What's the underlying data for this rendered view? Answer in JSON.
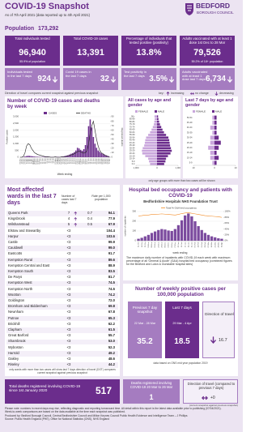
{
  "header": {
    "title": "COVID-19 Snapshot",
    "subtitle": "As of 7th April 2021 (data reported up to 4th April 2021)",
    "logo": [
      "BEDFORD",
      "BOROUGH COUNCIL"
    ]
  },
  "population": {
    "label": "Population",
    "value": "173,292"
  },
  "tiles": [
    {
      "label": "Total individuals tested",
      "value": "96,940",
      "note": "55.9% of population"
    },
    {
      "label": "Total COVID-19 cases",
      "value": "13,391"
    },
    {
      "label": "Percentage of individuals that tested positive (positivity)",
      "value": "13.8%"
    },
    {
      "label": "Adults vaccinated with at least 1 dose 1st Dec to 28 Mar",
      "value": "79,526",
      "note": "59.2% of 18+ population"
    }
  ],
  "tiles_7day": [
    {
      "label": "Individuals tested in the last 7 days",
      "value": "924",
      "dot": "down"
    },
    {
      "label": "Covid 19 cases in the last 7 days",
      "value": "32",
      "dot": "down"
    },
    {
      "label": "Test positivity in the last 7 days",
      "value": "3.5%",
      "dot": "down"
    },
    {
      "label": "Adults vaccinated with at least 1 dose last 7 days",
      "value": "6,734",
      "dot": "down"
    }
  ],
  "dot_note": "Direction of travel compares current snapshot against previous snapshot",
  "key": {
    "label": "key:",
    "items": [
      {
        "text": "increasing",
        "dot": "up"
      },
      {
        "text": "no change",
        "dot": "flat"
      },
      {
        "text": "decreasing",
        "dot": "down"
      }
    ]
  },
  "cases_deaths": {
    "title": "Number of COVID-19 cases and deaths by week",
    "type": "bar",
    "categories": [
      "06-Mar",
      "13-Mar",
      "20-Mar",
      "27-Mar",
      "03-Apr",
      "10-Apr",
      "17-Apr",
      "24-Apr",
      "01-May",
      "08-May",
      "15-May",
      "22-May",
      "29-May",
      "05-Jun",
      "12-Jun",
      "19-Jun",
      "26-Jun",
      "03-Jul",
      "10-Jul",
      "17-Jul",
      "24-Jul",
      "31-Jul",
      "07-Aug",
      "14-Aug",
      "21-Aug",
      "28-Aug",
      "04-Sep",
      "11-Sep",
      "18-Sep",
      "25-Sep",
      "02-Oct",
      "09-Oct",
      "16-Oct",
      "23-Oct",
      "30-Oct",
      "06-Nov",
      "13-Nov",
      "20-Nov",
      "27-Nov",
      "04-Dec",
      "11-Dec",
      "18-Dec",
      "25-Dec",
      "01-Jan",
      "08-Jan",
      "15-Jan",
      "22-Jan",
      "29-Jan",
      "05-Feb",
      "12-Feb",
      "19-Feb",
      "26-Feb",
      "05-Mar",
      "12-Mar",
      "19-Mar",
      "26-Mar",
      "02-Apr"
    ],
    "series": [
      {
        "name": "CASES",
        "color": "#6b2d8c",
        "values": [
          1,
          5,
          20,
          60,
          90,
          110,
          100,
          80,
          70,
          50,
          40,
          35,
          30,
          25,
          20,
          40,
          60,
          50,
          30,
          25,
          20,
          25,
          30,
          35,
          30,
          25,
          40,
          60,
          90,
          120,
          150,
          200,
          260,
          300,
          380,
          500,
          700,
          650,
          550,
          480,
          600,
          900,
          1500,
          2300,
          2800,
          2200,
          1500,
          1000,
          700,
          500,
          400,
          300,
          250,
          200,
          150,
          100,
          32
        ]
      },
      {
        "name": "DEATHS",
        "color": "#222222",
        "axis": "y2",
        "values": [
          0,
          0,
          2,
          10,
          25,
          30,
          28,
          20,
          15,
          10,
          8,
          6,
          5,
          4,
          3,
          2,
          1,
          1,
          1,
          0,
          0,
          0,
          1,
          0,
          0,
          0,
          1,
          1,
          1,
          2,
          3,
          4,
          5,
          6,
          8,
          10,
          12,
          14,
          12,
          10,
          9,
          10,
          15,
          30,
          55,
          70,
          80,
          60,
          40,
          25,
          15,
          10,
          8,
          5,
          3,
          2,
          1
        ]
      }
    ],
    "ylim": [
      0,
      3000
    ],
    "yticks": [
      0,
      500,
      {
        "value": 1000,
        "label": "1,000"
      },
      {
        "value": 1500,
        "label": "1,500"
      },
      {
        "value": 2000,
        "label": "2,000"
      },
      {
        "value": 2500,
        "label": "2,500"
      },
      {
        "value": 3000,
        "label": "3,000"
      }
    ],
    "y2lim": [
      0,
      90
    ],
    "y2ticks": [
      0,
      10,
      20,
      30,
      40,
      50,
      60,
      70,
      80,
      90
    ],
    "xlabel": "Week ending",
    "ylabel": "Positive cases",
    "y2label": "Registered deaths"
  },
  "age": {
    "panels": [
      {
        "title": "All cases by age and gender",
        "categories": [
          "0-4",
          "5-9",
          "10-14",
          "15-19",
          "20-24",
          "25-29",
          "30-34",
          "35-39",
          "40-44",
          "45-49",
          "50-54",
          "55-59",
          "60-64",
          "65-69",
          "70-74",
          "75-79",
          "80-84",
          "85-89",
          "90+"
        ],
        "series": [
          {
            "name": "FEMALE",
            "color": "#c9a6dc",
            "values": [
              330,
              380,
              420,
              560,
              700,
              720,
              680,
              610,
              580,
              560,
              520,
              420,
              330,
              260,
              200,
              150,
              130,
              110,
              120
            ]
          },
          {
            "name": "MALE",
            "color": "#6b2d8c",
            "values": [
              340,
              400,
              430,
              520,
              640,
              700,
              660,
              620,
              600,
              580,
              540,
              430,
              330,
              260,
              200,
              140,
              100,
              70,
              50
            ]
          }
        ],
        "xlim": [
          0,
          1000
        ],
        "xticks": [
          0,
          {
            "value": 1000,
            "label": "1,000"
          }
        ]
      },
      {
        "title": "Last 7 days by age and gender",
        "categories": [
          "5-9",
          "10-14",
          "15-19",
          "20-24",
          "25-29",
          "30-34",
          "35-39",
          "40-44",
          "45-49",
          "50-54"
        ],
        "series": [
          {
            "name": "FEMALE",
            "color": "#c9a6dc",
            "values": [
              1,
              2,
              2,
              3,
              2,
              2,
              1,
              2,
              1,
              1
            ]
          },
          {
            "name": "MALE",
            "color": "#6b2d8c",
            "values": [
              1,
              2,
              1,
              2,
              3,
              2,
              1,
              1,
              1,
              1
            ]
          }
        ],
        "xlim": [
          0,
          10
        ],
        "xticks": [
          0,
          10
        ]
      }
    ],
    "note": "only age groups with more than two cases will be shown"
  },
  "wards": {
    "title": "Most affected wards in the last 7 days",
    "headers": [
      "Number of cases last 7 days",
      "Rate per 1,000 population"
    ],
    "rows": [
      {
        "ward": "Queens Park",
        "cases": "7",
        "dot": "up",
        "rate_7day": "0.7",
        "rate_total": "94.1"
      },
      {
        "ward": "Kingsbrook",
        "cases": "4",
        "dot": "up",
        "rate_7day": "0.4",
        "rate_total": "77.9"
      },
      {
        "ward": "Wilshamstead",
        "cases": "5",
        "dot": "up",
        "rate_7day": "0.5",
        "rate_total": "67.9"
      },
      {
        "ward": "Elstow and Stewartby",
        "cases": "<3",
        "rate_total": "104.4"
      },
      {
        "ward": "Harpur",
        "cases": "<3",
        "rate_total": "103.6"
      },
      {
        "ward": "Castle",
        "cases": "<3",
        "rate_total": "99.9"
      },
      {
        "ward": "Cauldwell",
        "cases": "<3",
        "rate_total": "99.0"
      },
      {
        "ward": "Eastcotts",
        "cases": "<3",
        "rate_total": "91.7"
      },
      {
        "ward": "Kempston Rural",
        "cases": "<3",
        "rate_total": "89.6"
      },
      {
        "ward": "Kempston Central and East",
        "cases": "<3",
        "rate_total": "88.9"
      },
      {
        "ward": "Kempston South",
        "cases": "<3",
        "rate_total": "83.5"
      },
      {
        "ward": "De Parys",
        "cases": "<3",
        "rate_total": "81.7"
      },
      {
        "ward": "Kempston West",
        "cases": "<3",
        "rate_total": "74.5"
      },
      {
        "ward": "Kempston North",
        "cases": "<3",
        "rate_total": "74.5"
      },
      {
        "ward": "Wootton",
        "cases": "<3",
        "rate_total": "74.2"
      },
      {
        "ward": "Goldington",
        "cases": "<3",
        "rate_total": "72.0"
      },
      {
        "ward": "Bromham and Biddenham",
        "cases": "<3",
        "rate_total": "69.8"
      },
      {
        "ward": "Newnham",
        "cases": "<3",
        "rate_total": "67.8"
      },
      {
        "ward": "Putnoe",
        "cases": "<3",
        "rate_total": "65.3"
      },
      {
        "ward": "Brickhill",
        "cases": "<3",
        "rate_total": "62.2"
      },
      {
        "ward": "Clapham",
        "cases": "<3",
        "rate_total": "61.5"
      },
      {
        "ward": "Great Barford",
        "cases": "<3",
        "rate_total": "55.7"
      },
      {
        "ward": "Sharnbrook",
        "cases": "<3",
        "rate_total": "53.0"
      },
      {
        "ward": "Wyboston",
        "cases": "<3",
        "rate_total": "52.3"
      },
      {
        "ward": "Harrold",
        "cases": "<3",
        "rate_total": "49.2"
      },
      {
        "ward": "Oakley",
        "cases": "<3",
        "rate_total": "48.6"
      },
      {
        "ward": "Riseley",
        "cases": "<3",
        "rate_total": "44.2"
      }
    ],
    "note": "only wards with more than two cases will show last 7 days direction of travel (DOT) compares current snapshot against previous snapshot"
  },
  "hospital": {
    "title": "Hospital bed occupancy and patients with COVID-19",
    "subtitle": "Bedfordshire Hospitals NHS Foundation Trust",
    "type": "bar",
    "categories": [
      "11-Oct",
      "18-Oct",
      "25-Oct",
      "01-Nov",
      "08-Nov",
      "15-Nov",
      "22-Nov",
      "29-Nov",
      "06-Dec",
      "13-Dec",
      "20-Dec",
      "27-Dec",
      "03-Jan",
      "10-Jan",
      "17-Jan",
      "24-Jan",
      "31-Jan",
      "07-Feb",
      "14-Feb",
      "21-Feb",
      "28-Feb",
      "07-Mar",
      "14-Mar",
      "21-Mar",
      "28-Mar",
      "04-Apr"
    ],
    "series": [
      {
        "color": "#7b4a9e",
        "values": [
          20,
          30,
          45,
          60,
          80,
          95,
          110,
          120,
          115,
          105,
          100,
          120,
          160,
          210,
          260,
          280,
          250,
          200,
          150,
          110,
          80,
          60,
          45,
          35,
          25,
          20
        ]
      },
      {
        "name": "Total % G&A bed occupancy",
        "color": "#f28c28",
        "axis": "y2",
        "values": [
          85,
          86,
          88,
          88,
          90,
          90,
          91,
          92,
          91,
          90,
          89,
          88,
          90,
          93,
          95,
          96,
          94,
          92,
          90,
          88,
          86,
          85,
          84,
          83,
          82,
          80
        ]
      }
    ],
    "ylim": [
      0,
      300
    ],
    "yticks": [
      0,
      100,
      200,
      300
    ],
    "y2lim": [
      0,
      100
    ],
    "y2ticks": [
      {
        "value": 0,
        "label": "0%"
      },
      {
        "value": 20,
        "label": "20%"
      },
      {
        "value": 40,
        "label": "40%"
      },
      {
        "value": 60,
        "label": "60%"
      },
      {
        "value": 80,
        "label": "80%"
      },
      {
        "value": 100,
        "label": "100%"
      }
    ],
    "xlabel": "week ending",
    "ylabel": "number of inpatients",
    "note": "The maximum daily number of inpatients with COVID-19 each week with maximum percentage of all 'General & Acute' (G&A) hospital bed occupancy (combined figures for the Bedford and Luton & Dunstable hospital sites)"
  },
  "weekly_rate": {
    "title": "Number of weekly positive cases per 100,000 population",
    "previous": {
      "label": "Previous 7 day snapshot",
      "dates": "22 Mar - 28 Mar",
      "value": "35.2"
    },
    "last": {
      "label": "Last 7 days",
      "dates": "29 Mar - 4 Apr",
      "value": "18.5"
    },
    "direction": {
      "label": "Direction of travel",
      "value": "16.7",
      "dot": "down"
    },
    "note": "data based on ONS mid year population 2019"
  },
  "deaths": {
    "total": {
      "label": "Total deaths registered involving COVID-19 since 1st January 2020",
      "value": "517"
    },
    "week": {
      "label": "Deaths registered involving COVID-19 20 Mar to 26 Mar",
      "value": "1"
    },
    "direction": {
      "label": "Direction of travel (compared to previous 7 days)",
      "value": "+0",
      "dot": "flat"
    },
    "note": "(current snapshot against previous snapshot)"
  },
  "footer": [
    "Please note: numbers in recent days may rise, reflecting diagnostic and reporting turnaround time. All detail within this report is the latest data available prior to publishing (07/04/2021).",
    "Week-to-week comparisons are based on the data available at the time each snapshot was published.",
    "Produced by: Bedford Borough Council, Central Bedfordshire Council and Milton Keynes Council Public Health Evidence and Intelligence Team – J Phillips",
    "Source: Public Health England (PHE), Office for National Statistics (ONS), NHS England"
  ]
}
